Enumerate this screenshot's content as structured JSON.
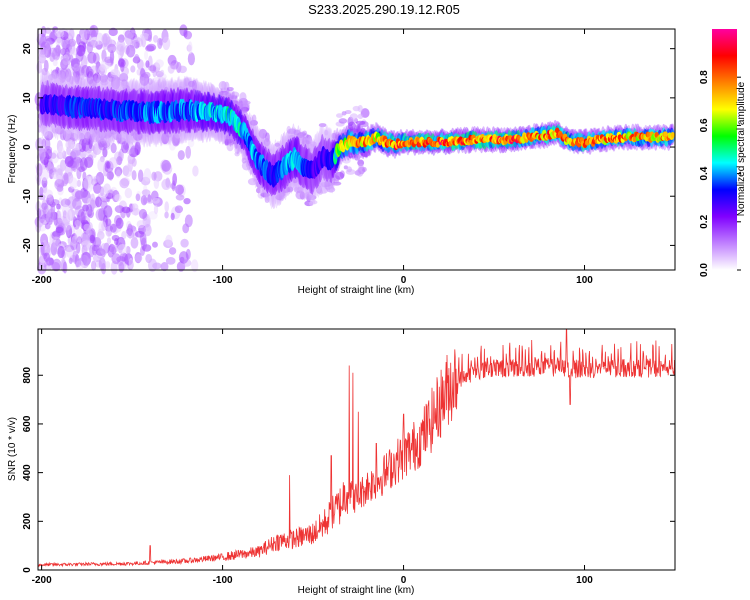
{
  "figure_title": "S233.2025.290.19.12.R05",
  "chart_data": [
    {
      "type": "heatmap",
      "name": "spectrogram",
      "xlabel": "Height of straight line (km)",
      "ylabel": "Frequency (Hz)",
      "xlim": [
        -202,
        150
      ],
      "ylim": [
        -25,
        24
      ],
      "x_ticks": [
        -200,
        -100,
        0,
        100
      ],
      "y_ticks": [
        -20,
        -10,
        0,
        10,
        20
      ],
      "colorbar": {
        "label": "Normalized spectral amplitude",
        "range": [
          0,
          1
        ],
        "ticks": [
          "0.0",
          "0.2",
          "0.4",
          "0.6",
          "0.8"
        ],
        "tick_values": [
          0,
          0.2,
          0.4,
          0.6,
          0.8
        ],
        "colors": [
          "#ffffff",
          "#c080ff",
          "#8000ff",
          "#0000ff",
          "#00ffff",
          "#00ff00",
          "#ffff00",
          "#ff8000",
          "#ff0000",
          "#ff00a0"
        ]
      },
      "ridge": {
        "x": [
          -200,
          -180,
          -160,
          -140,
          -120,
          -105,
          -95,
          -88,
          -80,
          -72,
          -66,
          -60,
          -55,
          -50,
          -45,
          -40,
          -35,
          -30,
          -20,
          -15,
          -10,
          -5,
          0,
          10,
          20,
          40,
          60,
          70,
          80,
          85,
          90,
          95,
          100,
          110,
          120,
          130,
          140,
          150
        ],
        "freq": [
          9,
          8,
          7.5,
          7,
          7.5,
          7,
          6,
          3,
          -3,
          -6,
          -4,
          -2,
          -4,
          -5,
          -2,
          -3,
          0,
          1,
          1,
          2,
          1,
          0.5,
          1,
          1,
          1,
          1.5,
          1.5,
          2,
          2.5,
          3,
          1.5,
          1,
          1,
          1.5,
          2,
          2,
          2,
          2
        ],
        "amp": [
          0.3,
          0.35,
          0.35,
          0.4,
          0.4,
          0.45,
          0.5,
          0.45,
          0.4,
          0.35,
          0.4,
          0.45,
          0.35,
          0.3,
          0.3,
          0.3,
          0.7,
          0.75,
          0.8,
          0.7,
          0.8,
          0.85,
          0.85,
          0.85,
          0.9,
          0.85,
          0.88,
          0.8,
          0.85,
          0.8,
          0.85,
          0.75,
          0.85,
          0.8,
          0.82,
          0.78,
          0.8,
          0.8
        ],
        "spread_hz": [
          3,
          3,
          3,
          3,
          3,
          2.5,
          2.5,
          2.5,
          3,
          3,
          3,
          3,
          3,
          3,
          3,
          3,
          1.5,
          1.5,
          1.3,
          1.2,
          1.2,
          1.1,
          1,
          1,
          1,
          1,
          1,
          1,
          1,
          1,
          1,
          1,
          1,
          1,
          1,
          1,
          1,
          1
        ]
      }
    },
    {
      "type": "line",
      "name": "snr",
      "xlabel": "Height of straight line (km)",
      "ylabel": "SNR (10 * v/v)",
      "xlim": [
        -202,
        150
      ],
      "ylim": [
        0,
        990
      ],
      "x_ticks": [
        -200,
        -100,
        0,
        100
      ],
      "y_ticks": [
        0,
        200,
        400,
        600,
        800
      ],
      "line_color": "#ee3333",
      "envelope": {
        "x": [
          -202,
          -150,
          -120,
          -100,
          -80,
          -70,
          -60,
          -50,
          -45,
          -40,
          -35,
          -32,
          -30,
          -28,
          -25,
          -20,
          -15,
          -10,
          -5,
          0,
          5,
          10,
          15,
          20,
          25,
          30,
          35,
          40,
          50,
          60,
          80,
          100,
          120,
          150
        ],
        "snr": [
          20,
          25,
          35,
          50,
          70,
          110,
          120,
          140,
          170,
          210,
          250,
          300,
          330,
          280,
          290,
          330,
          350,
          380,
          420,
          450,
          480,
          520,
          580,
          650,
          720,
          770,
          790,
          810,
          820,
          820,
          825,
          815,
          820,
          820
        ]
      },
      "spikes": [
        {
          "x": -140,
          "snr": 100
        },
        {
          "x": -63,
          "snr": 390
        },
        {
          "x": -40,
          "snr": 470
        },
        {
          "x": -30,
          "snr": 840
        },
        {
          "x": -28,
          "snr": 810
        },
        {
          "x": -25,
          "snr": 650
        },
        {
          "x": -15,
          "snr": 520
        },
        {
          "x": 0,
          "snr": 640
        },
        {
          "x": 90,
          "snr": 990
        },
        {
          "x": 92,
          "snr": 680
        }
      ]
    }
  ]
}
